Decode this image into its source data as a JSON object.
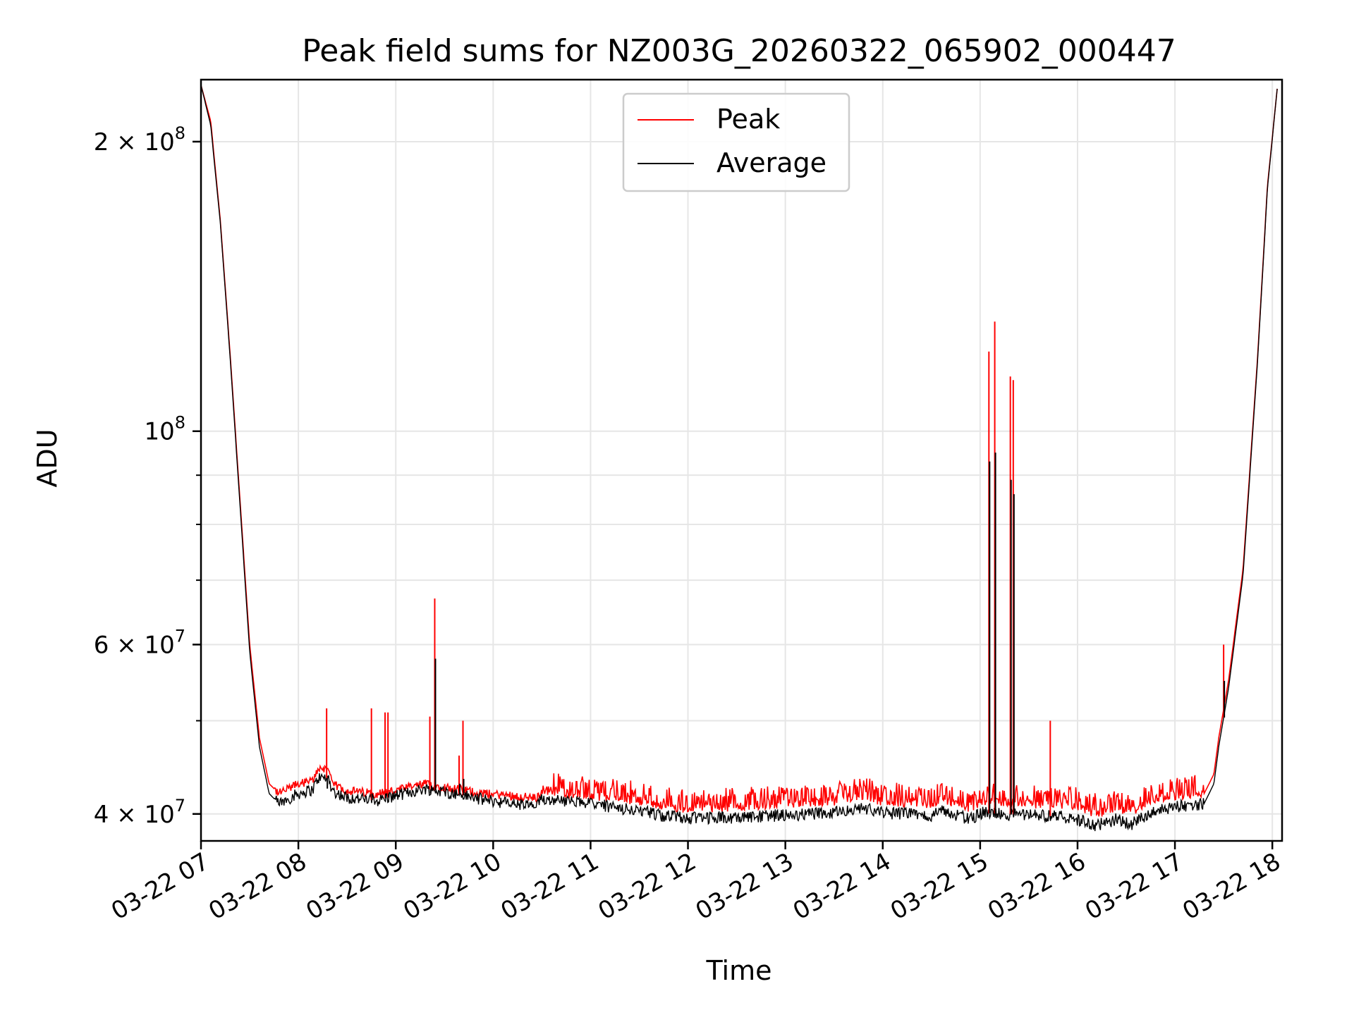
{
  "chart_data": {
    "type": "line",
    "title": "Peak field sums for NZ003G_20260322_065902_000447",
    "xlabel": "Time",
    "ylabel": "ADU",
    "yscale": "log",
    "xlim": [
      7.0,
      18.1
    ],
    "ylim": [
      37500000,
      232000000
    ],
    "grid": true,
    "legend_position": "top-center",
    "x_ticks": [
      {
        "value": 7,
        "label": "03-22 07"
      },
      {
        "value": 8,
        "label": "03-22 08"
      },
      {
        "value": 9,
        "label": "03-22 09"
      },
      {
        "value": 10,
        "label": "03-22 10"
      },
      {
        "value": 11,
        "label": "03-22 11"
      },
      {
        "value": 12,
        "label": "03-22 12"
      },
      {
        "value": 13,
        "label": "03-22 13"
      },
      {
        "value": 14,
        "label": "03-22 14"
      },
      {
        "value": 15,
        "label": "03-22 15"
      },
      {
        "value": 16,
        "label": "03-22 16"
      },
      {
        "value": 17,
        "label": "03-22 17"
      },
      {
        "value": 18,
        "label": "03-22 18"
      }
    ],
    "y_ticks": [
      {
        "value": 40000000,
        "base": "4",
        "exp": "7"
      },
      {
        "value": 60000000,
        "base": "6",
        "exp": "7"
      },
      {
        "value": 100000000,
        "base": "",
        "exp": "8"
      },
      {
        "value": 200000000,
        "base": "2",
        "exp": "8"
      }
    ],
    "y_minor_ticks": [
      50000000,
      70000000,
      80000000,
      90000000
    ],
    "series": [
      {
        "name": "Peak",
        "color": "#ff0000",
        "x": [
          7.0,
          7.1,
          7.2,
          7.3,
          7.4,
          7.5,
          7.6,
          7.7,
          7.8,
          7.9,
          8.0,
          8.15,
          8.2,
          8.32,
          8.34,
          8.5,
          8.8,
          9.0,
          9.3,
          9.6,
          9.9,
          10.2,
          10.45,
          10.5,
          11.0,
          11.5,
          11.7,
          12.0,
          12.5,
          13.0,
          13.5,
          13.8,
          14.0,
          14.5,
          14.6,
          14.9,
          15.0,
          15.5,
          15.9,
          16.05,
          16.2,
          16.4,
          16.55,
          16.8,
          17.0,
          17.3,
          17.4,
          17.45,
          17.55,
          17.7,
          17.85,
          17.95,
          18.05
        ],
        "y": [
          229000000,
          210000000,
          165000000,
          120000000,
          85000000,
          60000000,
          48000000,
          43000000,
          42000000,
          42500000,
          43000000,
          43300000,
          44600000,
          44600000,
          43000000,
          42300000,
          42000000,
          42300000,
          43000000,
          42500000,
          42000000,
          41800000,
          41500000,
          42400000,
          41800000,
          41300000,
          40800000,
          40500000,
          40700000,
          41000000,
          41200000,
          41800000,
          41200000,
          41000000,
          41500000,
          40500000,
          41200000,
          41000000,
          40900000,
          40500000,
          40000000,
          40600000,
          40200000,
          41500000,
          41800000,
          42000000,
          44000000,
          48000000,
          55000000,
          72000000,
          120000000,
          180000000,
          227000000
        ]
      },
      {
        "name": "Average",
        "color": "#000000",
        "x": [
          7.0,
          7.1,
          7.2,
          7.3,
          7.4,
          7.5,
          7.6,
          7.7,
          7.8,
          7.9,
          8.0,
          8.15,
          8.2,
          8.32,
          8.34,
          8.5,
          8.8,
          9.0,
          9.3,
          9.6,
          9.9,
          10.2,
          10.45,
          10.5,
          11.0,
          11.5,
          11.7,
          12.0,
          12.5,
          13.0,
          13.5,
          13.8,
          14.0,
          14.5,
          14.6,
          14.9,
          15.0,
          15.5,
          15.9,
          16.05,
          16.2,
          16.4,
          16.55,
          16.8,
          17.0,
          17.3,
          17.4,
          17.45,
          17.55,
          17.7,
          17.85,
          17.95,
          18.05
        ],
        "y": [
          229000000,
          208000000,
          164000000,
          119000000,
          84000000,
          59000000,
          47000000,
          42000000,
          41000000,
          41500000,
          42000000,
          42400000,
          43600000,
          43600000,
          42300000,
          41600000,
          41300000,
          41800000,
          42500000,
          42000000,
          41400000,
          41000000,
          40700000,
          41500000,
          41000000,
          40300000,
          39900000,
          39600000,
          39700000,
          39900000,
          40100000,
          40600000,
          40100000,
          39900000,
          40400000,
          39500000,
          40100000,
          39900000,
          39700000,
          39300000,
          38900000,
          39500000,
          39000000,
          40400000,
          40700000,
          41000000,
          43000000,
          47000000,
          54000000,
          71000000,
          119000000,
          179000000,
          227000000
        ]
      }
    ],
    "spikes": [
      {
        "x": 8.29,
        "peak": 51500000,
        "avg": 42500000
      },
      {
        "x": 8.75,
        "peak": 51500000,
        "avg": 42000000
      },
      {
        "x": 8.89,
        "peak": 51000000,
        "avg": 42000000
      },
      {
        "x": 8.92,
        "peak": 51000000,
        "avg": 42000000
      },
      {
        "x": 9.35,
        "peak": 50500000,
        "avg": 42000000
      },
      {
        "x": 9.4,
        "peak": 67000000,
        "avg": 58000000
      },
      {
        "x": 9.65,
        "peak": 46000000,
        "avg": 43000000
      },
      {
        "x": 9.69,
        "peak": 50000000,
        "avg": 43500000
      },
      {
        "x": 15.09,
        "peak": 121000000,
        "avg": 93000000
      },
      {
        "x": 15.15,
        "peak": 130000000,
        "avg": 95000000
      },
      {
        "x": 15.31,
        "peak": 114000000,
        "avg": 89000000
      },
      {
        "x": 15.34,
        "peak": 113000000,
        "avg": 86000000
      },
      {
        "x": 15.72,
        "peak": 50000000,
        "avg": 39500000
      },
      {
        "x": 17.5,
        "peak": 60000000,
        "avg": 55000000
      }
    ],
    "legend": [
      {
        "label": "Peak",
        "color": "#ff0000"
      },
      {
        "label": "Average",
        "color": "#000000"
      }
    ]
  }
}
